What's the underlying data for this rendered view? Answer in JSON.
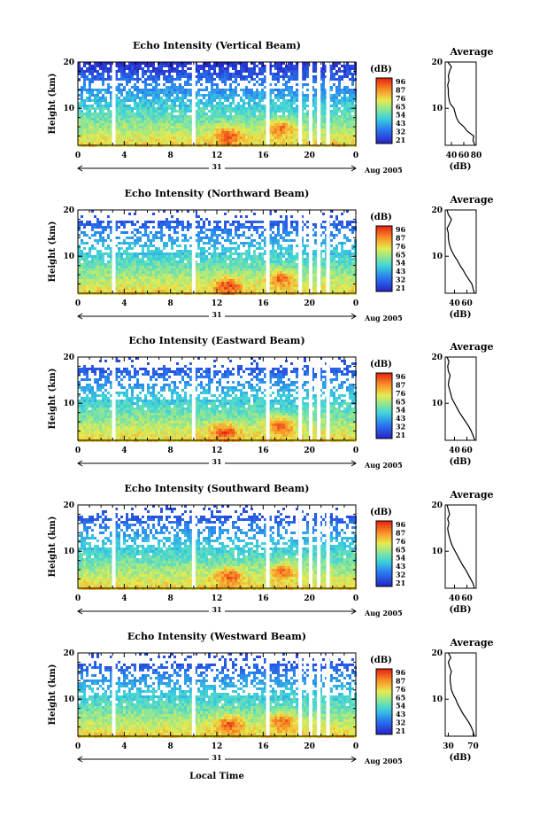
{
  "x_axis_title": "Local Time",
  "date_label": "31",
  "month_year_label": "Aug 2005",
  "height_label": "Height (km)",
  "avg_xlabel": "(dB)",
  "avg_title": "Average",
  "colorbar_unit": "(dB)",
  "colors": {
    "low": "#2c2cd4",
    "mid": "#40d0c0",
    "high": "#ff4010",
    "axis": "#000000",
    "gap": "#ffffff"
  },
  "chart_data": [
    {
      "type": "heatmap",
      "title": "Echo Intensity (Vertical Beam)",
      "xlim": [
        0,
        24
      ],
      "x_ticks": [
        "0",
        "4",
        "8",
        "12",
        "16",
        "20",
        "0"
      ],
      "ylim": [
        2,
        20
      ],
      "y_ticks": [
        "20",
        "10"
      ],
      "colorbar_ticks": [
        "96",
        "87",
        "76",
        "65",
        "54",
        "43",
        "32",
        "21"
      ],
      "gaps_hours": [
        3.1,
        10.0,
        16.4,
        19.2,
        20.1,
        20.8,
        21.6
      ],
      "hot_spots": [
        [
          12.8,
          4.5
        ],
        [
          17.4,
          6.0
        ]
      ],
      "average_profile": {
        "xlim": [
          30,
          80
        ],
        "x_ticks": [
          "40",
          "60",
          "80"
        ],
        "heights": [
          2,
          3,
          4,
          5,
          6,
          7,
          8,
          9,
          10,
          11,
          12,
          13,
          14,
          15,
          16,
          17,
          18,
          19,
          20
        ],
        "values": [
          78,
          75,
          76,
          66,
          60,
          52,
          48,
          46,
          44,
          38,
          36,
          35,
          35,
          34,
          36,
          35,
          37,
          40,
          34
        ]
      }
    },
    {
      "type": "heatmap",
      "title": "Echo Intensity (Northward Beam)",
      "xlim": [
        0,
        24
      ],
      "x_ticks": [
        "0",
        "4",
        "8",
        "12",
        "16",
        "20",
        "0"
      ],
      "ylim": [
        2,
        20
      ],
      "y_ticks": [
        "20",
        "10"
      ],
      "colorbar_ticks": [
        "96",
        "87",
        "76",
        "65",
        "54",
        "43",
        "32",
        "21"
      ],
      "gaps_hours": [
        3.1,
        10.0,
        16.4,
        19.2,
        20.1,
        20.8,
        21.6
      ],
      "hot_spots": [
        [
          12.8,
          4.0
        ],
        [
          17.4,
          5.5
        ]
      ],
      "average_profile": {
        "xlim": [
          25,
          75
        ],
        "x_ticks": [
          "40",
          "60"
        ],
        "heights": [
          2,
          3,
          4,
          5,
          6,
          7,
          8,
          9,
          10,
          11,
          12,
          13,
          14,
          15,
          16,
          17,
          18,
          19,
          20
        ],
        "values": [
          72,
          70,
          68,
          63,
          58,
          54,
          49,
          45,
          40,
          36,
          33,
          31,
          30,
          30,
          28,
          32,
          35,
          30,
          28
        ]
      }
    },
    {
      "type": "heatmap",
      "title": "Echo Intensity (Eastward Beam)",
      "xlim": [
        0,
        24
      ],
      "x_ticks": [
        "0",
        "4",
        "8",
        "12",
        "16",
        "20",
        "0"
      ],
      "ylim": [
        2,
        20
      ],
      "y_ticks": [
        "20",
        "10"
      ],
      "colorbar_ticks": [
        "96",
        "87",
        "76",
        "65",
        "54",
        "43",
        "32",
        "21"
      ],
      "gaps_hours": [
        3.1,
        10.0,
        16.4,
        19.2,
        20.1,
        20.8,
        21.6
      ],
      "hot_spots": [
        [
          12.6,
          4.2
        ],
        [
          17.4,
          5.5
        ]
      ],
      "average_profile": {
        "xlim": [
          25,
          75
        ],
        "x_ticks": [
          "40",
          "60"
        ],
        "heights": [
          2,
          3,
          4,
          5,
          6,
          7,
          8,
          9,
          10,
          11,
          12,
          13,
          14,
          15,
          16,
          17,
          18,
          19,
          20
        ],
        "values": [
          73,
          70,
          67,
          63,
          58,
          53,
          48,
          44,
          40,
          36,
          34,
          32,
          30,
          31,
          33,
          30,
          29,
          31,
          28
        ]
      }
    },
    {
      "type": "heatmap",
      "title": "Echo Intensity (Southward Beam)",
      "xlim": [
        0,
        24
      ],
      "x_ticks": [
        "0",
        "4",
        "8",
        "12",
        "16",
        "20",
        "0"
      ],
      "ylim": [
        2,
        20
      ],
      "y_ticks": [
        "20",
        "10"
      ],
      "colorbar_ticks": [
        "96",
        "87",
        "76",
        "65",
        "54",
        "43",
        "32",
        "21"
      ],
      "gaps_hours": [
        3.1,
        10.0,
        16.4,
        19.2,
        20.1,
        20.8,
        21.6
      ],
      "hot_spots": [
        [
          13.0,
          5.0
        ],
        [
          17.6,
          6.0
        ]
      ],
      "average_profile": {
        "xlim": [
          25,
          75
        ],
        "x_ticks": [
          "40",
          "60"
        ],
        "heights": [
          2,
          3,
          4,
          5,
          6,
          7,
          8,
          9,
          10,
          11,
          12,
          13,
          14,
          15,
          16,
          17,
          18,
          19,
          20
        ],
        "values": [
          72,
          70,
          66,
          62,
          58,
          53,
          49,
          45,
          41,
          37,
          34,
          32,
          30,
          29,
          31,
          29,
          32,
          30,
          28
        ]
      }
    },
    {
      "type": "heatmap",
      "title": "Echo Intensity (Westward Beam)",
      "xlim": [
        0,
        24
      ],
      "x_ticks": [
        "0",
        "4",
        "8",
        "12",
        "16",
        "20",
        "0"
      ],
      "ylim": [
        2,
        20
      ],
      "y_ticks": [
        "20",
        "10"
      ],
      "colorbar_ticks": [
        "96",
        "87",
        "76",
        "65",
        "54",
        "43",
        "32",
        "21"
      ],
      "gaps_hours": [
        3.1,
        10.0,
        16.4,
        19.2,
        20.1,
        20.8,
        21.6
      ],
      "hot_spots": [
        [
          13.0,
          5.0
        ],
        [
          17.6,
          5.5
        ]
      ],
      "average_profile": {
        "xlim": [
          25,
          75
        ],
        "x_ticks": [
          "30",
          "70"
        ],
        "heights": [
          2,
          3,
          4,
          5,
          6,
          7,
          8,
          9,
          10,
          11,
          12,
          13,
          14,
          15,
          16,
          17,
          18,
          19,
          20
        ],
        "values": [
          72,
          70,
          67,
          63,
          58,
          53,
          49,
          45,
          42,
          38,
          35,
          34,
          33,
          33,
          35,
          32,
          30,
          34,
          30
        ]
      }
    }
  ]
}
